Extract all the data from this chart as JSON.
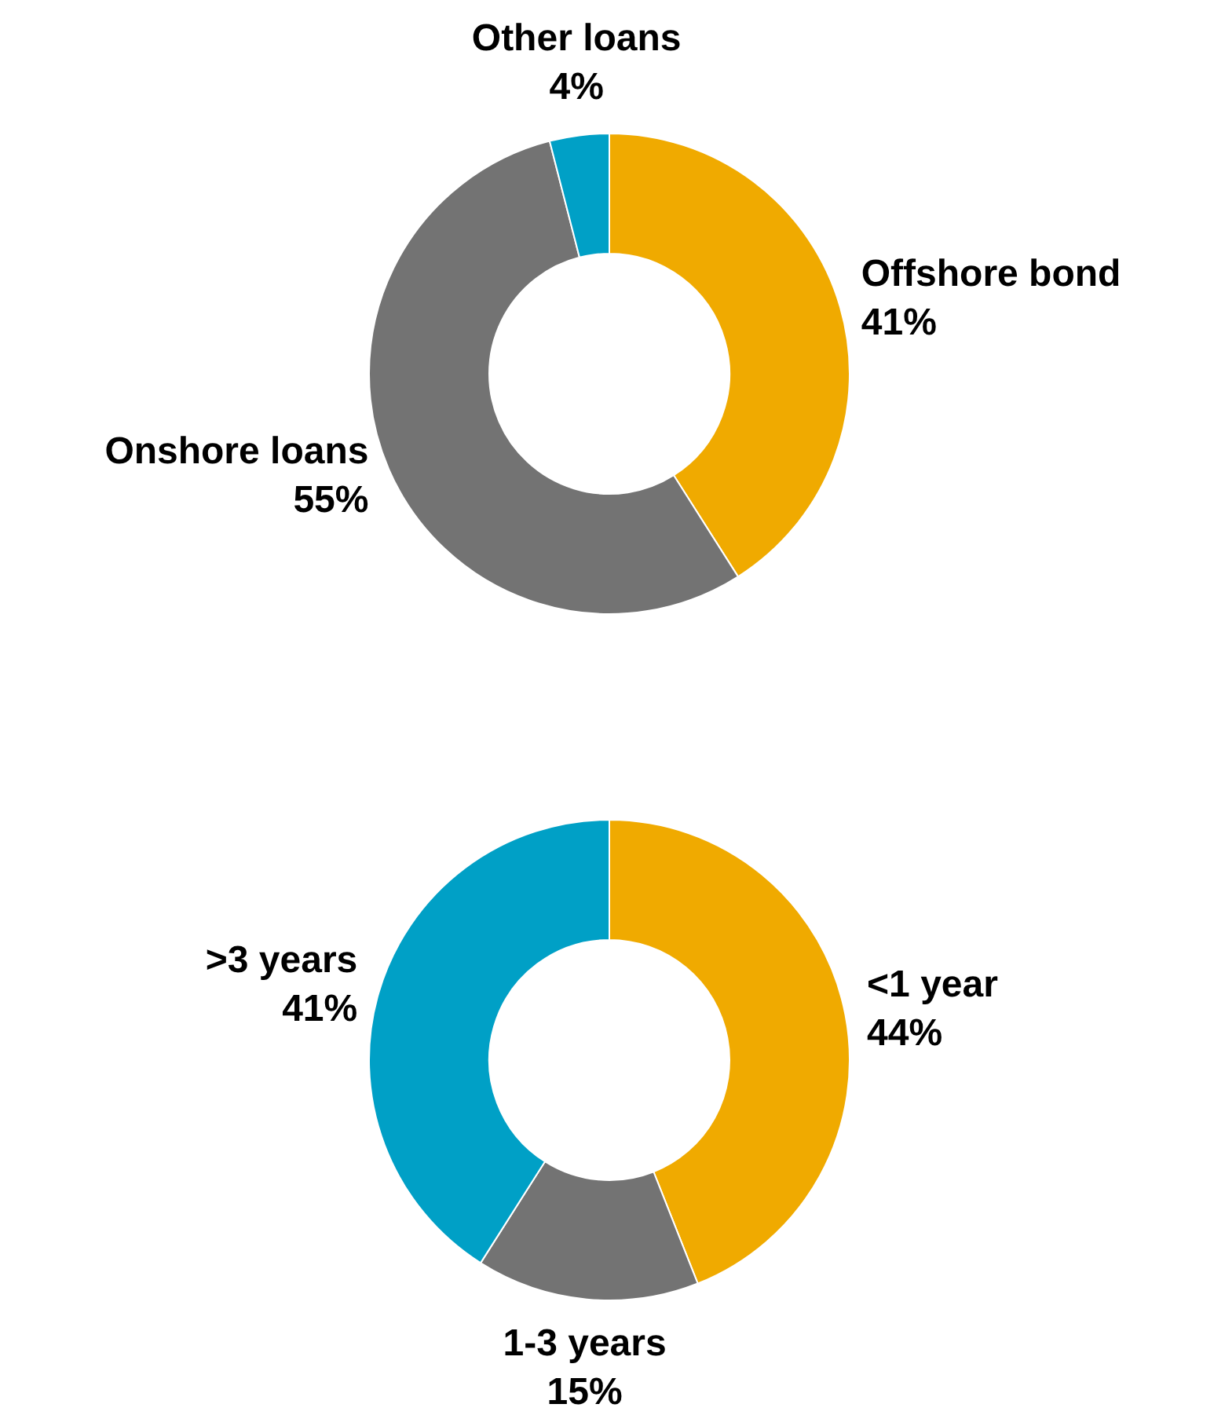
{
  "chart_data": [
    {
      "type": "donut",
      "categories": [
        "Offshore bond",
        "Onshore loans",
        "Other loans"
      ],
      "values": [
        41,
        55,
        4
      ],
      "colors": [
        "#f0aa00",
        "#737373",
        "#00a0c6"
      ],
      "value_labels": [
        "41%",
        "55%",
        "4%"
      ]
    },
    {
      "type": "donut",
      "categories": [
        "<1 year",
        "1-3 years",
        ">3 years"
      ],
      "values": [
        44,
        15,
        41
      ],
      "colors": [
        "#f0aa00",
        "#737373",
        "#00a0c6"
      ],
      "value_labels": [
        "44%",
        "15%",
        "41%"
      ]
    }
  ]
}
